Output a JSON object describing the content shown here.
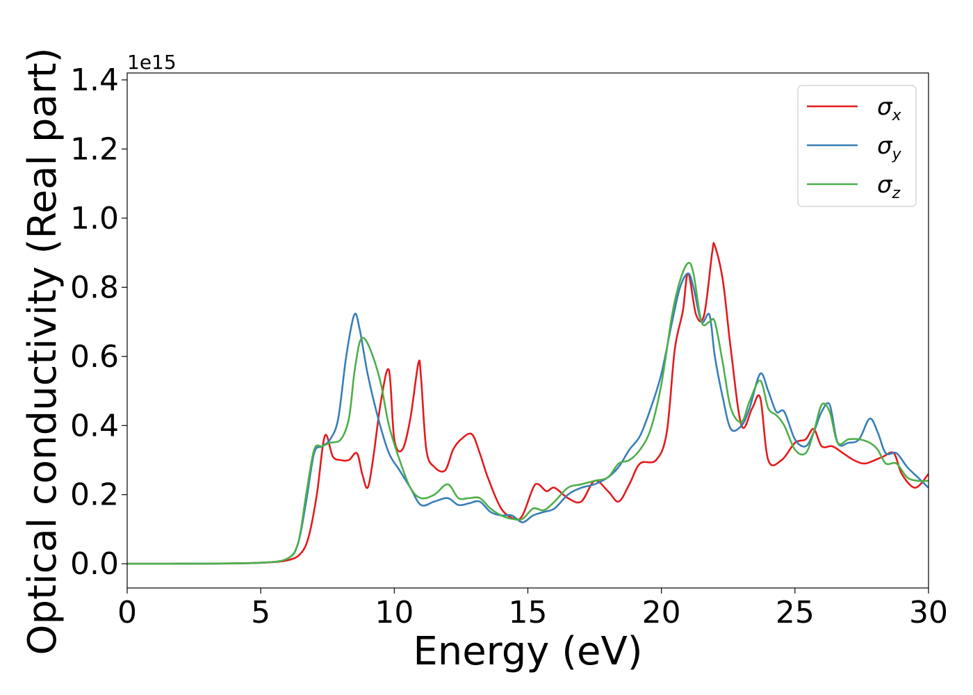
{
  "chart_data": {
    "type": "line",
    "xlabel": "Energy (eV)",
    "ylabel": "Optical conductivity (Real part)",
    "y_offset_label": "1e15",
    "xlim": [
      0,
      30
    ],
    "ylim": [
      -0.07,
      1.42
    ],
    "x_ticks": [
      0,
      5,
      10,
      15,
      20,
      25,
      30
    ],
    "x_tick_labels": [
      "0",
      "5",
      "10",
      "15",
      "20",
      "25",
      "30"
    ],
    "y_ticks": [
      0.0,
      0.2,
      0.4,
      0.6,
      0.8,
      1.0,
      1.2,
      1.4
    ],
    "y_tick_labels": [
      "0.0",
      "0.2",
      "0.4",
      "0.6",
      "0.8",
      "1.0",
      "1.2",
      "1.4"
    ],
    "grid": false,
    "legend_position": "top-right",
    "series": [
      {
        "name": "σx",
        "symbol": "σ",
        "subscript": "x",
        "color": "#e41a1c",
        "x": [
          0,
          3,
          5,
          6,
          6.5,
          6.8,
          7.1,
          7.4,
          7.7,
          8.0,
          8.3,
          8.6,
          8.8,
          9.0,
          9.2,
          9.5,
          9.8,
          10.0,
          10.3,
          10.6,
          10.9,
          11.0,
          11.2,
          11.5,
          11.9,
          12.2,
          12.5,
          12.9,
          13.2,
          13.5,
          14.0,
          14.5,
          14.8,
          15.2,
          15.4,
          15.7,
          16.0,
          16.5,
          17.0,
          17.5,
          18.0,
          18.4,
          18.8,
          19.2,
          19.8,
          20.2,
          20.5,
          20.8,
          21.0,
          21.3,
          21.6,
          21.9,
          22.0,
          22.3,
          22.6,
          23.0,
          23.4,
          23.7,
          24.0,
          24.5,
          25.0,
          25.4,
          25.7,
          26.0,
          26.4,
          26.8,
          27.2,
          27.6,
          28.0,
          28.3,
          28.7,
          29.0,
          29.5,
          30.0
        ],
        "y": [
          0,
          0.0005,
          0.003,
          0.01,
          0.03,
          0.08,
          0.2,
          0.37,
          0.31,
          0.3,
          0.3,
          0.32,
          0.26,
          0.22,
          0.3,
          0.47,
          0.56,
          0.36,
          0.33,
          0.42,
          0.58,
          0.54,
          0.33,
          0.28,
          0.27,
          0.33,
          0.36,
          0.375,
          0.32,
          0.25,
          0.16,
          0.13,
          0.14,
          0.22,
          0.23,
          0.21,
          0.22,
          0.19,
          0.18,
          0.24,
          0.21,
          0.18,
          0.23,
          0.29,
          0.3,
          0.38,
          0.62,
          0.73,
          0.84,
          0.72,
          0.72,
          0.9,
          0.92,
          0.82,
          0.62,
          0.4,
          0.45,
          0.48,
          0.3,
          0.3,
          0.35,
          0.36,
          0.39,
          0.34,
          0.34,
          0.32,
          0.3,
          0.29,
          0.3,
          0.31,
          0.32,
          0.26,
          0.22,
          0.26
        ]
      },
      {
        "name": "σy",
        "symbol": "σ",
        "subscript": "y",
        "color": "#377eb8",
        "x": [
          0,
          3,
          5,
          6,
          6.4,
          6.7,
          7.0,
          7.3,
          7.6,
          7.9,
          8.2,
          8.5,
          8.7,
          9.0,
          9.4,
          9.8,
          10.2,
          10.6,
          11.0,
          11.5,
          12.0,
          12.4,
          12.8,
          13.2,
          13.6,
          14.0,
          14.4,
          14.8,
          15.2,
          15.6,
          16.0,
          16.5,
          17.0,
          17.5,
          18.0,
          18.4,
          18.8,
          19.2,
          19.6,
          20.0,
          20.4,
          20.7,
          21.0,
          21.2,
          21.5,
          21.8,
          22.0,
          22.3,
          22.6,
          23.0,
          23.3,
          23.7,
          24.0,
          24.3,
          24.6,
          25.0,
          25.4,
          25.7,
          26.0,
          26.3,
          26.6,
          27.0,
          27.4,
          27.8,
          28.1,
          28.4,
          28.8,
          29.2,
          29.6,
          30.0
        ],
        "y": [
          0,
          0.0005,
          0.003,
          0.015,
          0.06,
          0.18,
          0.32,
          0.34,
          0.36,
          0.42,
          0.6,
          0.72,
          0.68,
          0.55,
          0.42,
          0.32,
          0.27,
          0.22,
          0.17,
          0.18,
          0.19,
          0.17,
          0.175,
          0.18,
          0.15,
          0.14,
          0.14,
          0.12,
          0.14,
          0.15,
          0.16,
          0.2,
          0.22,
          0.23,
          0.25,
          0.28,
          0.33,
          0.37,
          0.45,
          0.55,
          0.7,
          0.8,
          0.84,
          0.8,
          0.7,
          0.72,
          0.6,
          0.48,
          0.39,
          0.4,
          0.45,
          0.55,
          0.5,
          0.44,
          0.44,
          0.36,
          0.34,
          0.38,
          0.44,
          0.46,
          0.35,
          0.35,
          0.36,
          0.42,
          0.38,
          0.32,
          0.32,
          0.28,
          0.25,
          0.22
        ]
      },
      {
        "name": "σz",
        "symbol": "σ",
        "subscript": "z",
        "color": "#4daf4a",
        "x": [
          0,
          3,
          5,
          6,
          6.4,
          6.7,
          7.0,
          7.3,
          7.6,
          8.0,
          8.3,
          8.5,
          8.7,
          8.9,
          9.2,
          9.5,
          9.8,
          10.2,
          10.6,
          11.0,
          11.5,
          12.0,
          12.4,
          12.8,
          13.2,
          13.6,
          14.0,
          14.4,
          14.8,
          15.2,
          15.6,
          16.0,
          16.5,
          17.0,
          17.5,
          18.0,
          18.4,
          18.8,
          19.2,
          19.6,
          20.0,
          20.4,
          20.7,
          21.0,
          21.2,
          21.5,
          21.8,
          22.0,
          22.3,
          22.6,
          23.0,
          23.3,
          23.7,
          24.0,
          24.3,
          24.6,
          25.0,
          25.4,
          25.7,
          26.0,
          26.3,
          26.6,
          27.0,
          27.4,
          27.8,
          28.1,
          28.4,
          28.8,
          29.2,
          29.6,
          30.0
        ],
        "y": [
          0,
          0.0005,
          0.003,
          0.015,
          0.06,
          0.2,
          0.33,
          0.34,
          0.35,
          0.36,
          0.42,
          0.55,
          0.64,
          0.65,
          0.6,
          0.52,
          0.4,
          0.3,
          0.22,
          0.19,
          0.2,
          0.23,
          0.19,
          0.19,
          0.19,
          0.16,
          0.14,
          0.13,
          0.13,
          0.16,
          0.155,
          0.18,
          0.22,
          0.23,
          0.24,
          0.25,
          0.29,
          0.3,
          0.33,
          0.39,
          0.52,
          0.72,
          0.82,
          0.87,
          0.84,
          0.7,
          0.7,
          0.7,
          0.58,
          0.45,
          0.41,
          0.47,
          0.53,
          0.45,
          0.43,
          0.4,
          0.33,
          0.32,
          0.38,
          0.46,
          0.44,
          0.35,
          0.36,
          0.36,
          0.35,
          0.33,
          0.29,
          0.29,
          0.25,
          0.24,
          0.24
        ]
      }
    ]
  }
}
